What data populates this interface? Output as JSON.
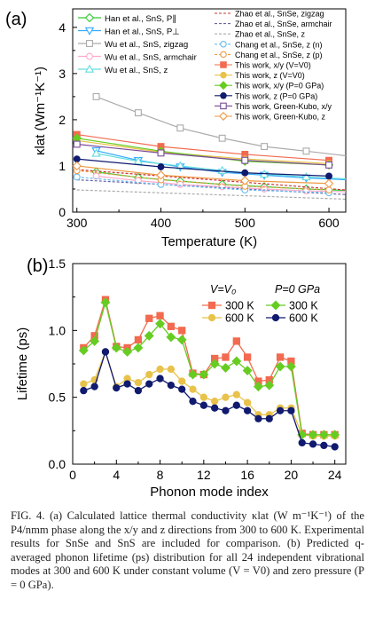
{
  "chart_data": [
    {
      "type": "line",
      "panel_label": "(a)",
      "xlabel": "Temperature (K)",
      "ylabel": "κlat (Wm⁻¹K⁻¹)",
      "xlim": [
        295,
        620
      ],
      "ylim": [
        0,
        4.4
      ],
      "xticks": [
        300,
        400,
        500,
        600
      ],
      "yticks": [
        0,
        1,
        2,
        3,
        4
      ],
      "grid": false,
      "legend_left": [
        {
          "label": "Han et al., SnS, P∥",
          "color": "#33cc33",
          "marker": "diamond-open"
        },
        {
          "label": "Han et al., SnS, P⊥",
          "color": "#33aaff",
          "marker": "triangle-down-open"
        },
        {
          "label": "Wu et al., SnS, zigzag",
          "color": "#aaaaaa",
          "marker": "square-open"
        },
        {
          "label": "Wu et al., SnS, armchair",
          "color": "#ffaacc",
          "marker": "circle-open"
        },
        {
          "label": "Wu et al., SnS, z",
          "color": "#66dddd",
          "marker": "triangle-up-open"
        }
      ],
      "legend_right": [
        {
          "label": "Zhao et al., SnSe, zigzag",
          "color": "#cc3333",
          "marker": "dash"
        },
        {
          "label": "Zhao et al., SnSe, armchair",
          "color": "#6666aa",
          "marker": "dash"
        },
        {
          "label": "Zhao et al., SnSe, z",
          "color": "#aaaaaa",
          "marker": "dash"
        },
        {
          "label": "Chang et al., SnSe, z (n)",
          "color": "#66bbee",
          "marker": "circle-open-dash"
        },
        {
          "label": "Chang et al., SnSe, z (p)",
          "color": "#ee9944",
          "marker": "circle-open-dash"
        },
        {
          "label": "This work, x/y (V=V0)",
          "color": "#f26a4f",
          "marker": "square"
        },
        {
          "label": "This work, z (V=V0)",
          "color": "#e8c24a",
          "marker": "circle"
        },
        {
          "label": "This work, x/y (P=0 GPa)",
          "color": "#66cc22",
          "marker": "diamond"
        },
        {
          "label": "This work, z (P=0 GPa)",
          "color": "#101a6e",
          "marker": "circle"
        },
        {
          "label": "This work, Green-Kubo, x/y",
          "color": "#7a4a9a",
          "marker": "square-open"
        },
        {
          "label": "This work, Green-Kubo, z",
          "color": "#ee9944",
          "marker": "diamond-open"
        }
      ],
      "series": [
        {
          "name": "Wu et al., SnS, zigzag",
          "color": "#aaaaaa",
          "marker": "square-open",
          "style": "solid",
          "x": [
            323,
            373,
            423,
            473,
            523,
            573,
            623
          ],
          "y": [
            2.5,
            2.15,
            1.82,
            1.6,
            1.42,
            1.32,
            1.22
          ]
        },
        {
          "name": "Han et al., SnS, P⊥",
          "color": "#33aaff",
          "marker": "triangle-down-open",
          "style": "solid",
          "x": [
            323,
            373,
            423,
            473,
            523,
            573,
            623
          ],
          "y": [
            1.33,
            1.12,
            0.98,
            0.86,
            0.8,
            0.74,
            0.7
          ]
        },
        {
          "name": "Wu et al., SnS, z",
          "color": "#66dddd",
          "marker": "triangle-up-open",
          "style": "solid",
          "x": [
            323,
            373,
            423,
            473,
            523,
            573,
            623
          ],
          "y": [
            1.27,
            1.1,
            1.0,
            0.9,
            0.82,
            0.76,
            0.72
          ]
        },
        {
          "name": "Han et al., SnS, P∥",
          "color": "#33cc33",
          "marker": "diamond-open",
          "style": "solid",
          "x": [
            323,
            373,
            423,
            473,
            523,
            573,
            623
          ],
          "y": [
            0.87,
            0.75,
            0.67,
            0.6,
            0.55,
            0.5,
            0.47
          ]
        },
        {
          "name": "Wu et al., SnS, armchair",
          "color": "#ffaacc",
          "marker": "circle-open",
          "style": "solid",
          "x": [
            323,
            373,
            423,
            473,
            523,
            573,
            623
          ],
          "y": [
            0.78,
            0.68,
            0.6,
            0.55,
            0.5,
            0.46,
            0.44
          ]
        },
        {
          "name": "Zhao et al., SnSe, zigzag",
          "color": "#cc3333",
          "marker": "none",
          "style": "dash",
          "x": [
            300,
            620
          ],
          "y": [
            0.92,
            0.48
          ]
        },
        {
          "name": "Zhao et al., SnSe, armchair",
          "color": "#6666aa",
          "marker": "none",
          "style": "dash",
          "x": [
            300,
            620
          ],
          "y": [
            0.7,
            0.38
          ]
        },
        {
          "name": "Zhao et al., SnSe, z",
          "color": "#aaaaaa",
          "marker": "none",
          "style": "dash",
          "x": [
            300,
            620
          ],
          "y": [
            0.48,
            0.28
          ]
        },
        {
          "name": "Chang et al., SnSe, z (n)",
          "color": "#66bbee",
          "marker": "circle-open",
          "style": "dash",
          "x": [
            300,
            400,
            500,
            600
          ],
          "y": [
            0.76,
            0.6,
            0.48,
            0.42
          ]
        },
        {
          "name": "Chang et al., SnSe, z (p)",
          "color": "#ee9944",
          "marker": "circle-open",
          "style": "dash",
          "x": [
            300,
            400,
            500,
            600
          ],
          "y": [
            0.9,
            0.7,
            0.56,
            0.48
          ]
        },
        {
          "name": "This work, x/y (V=V0)",
          "color": "#f26a4f",
          "marker": "square",
          "style": "solid",
          "x": [
            300,
            400,
            500,
            600
          ],
          "y": [
            1.68,
            1.42,
            1.25,
            1.12
          ]
        },
        {
          "name": "This work, z (V=V0)",
          "color": "#e8c24a",
          "marker": "circle",
          "style": "solid",
          "x": [
            300,
            400,
            500,
            600
          ],
          "y": [
            1.55,
            1.3,
            1.15,
            1.05
          ]
        },
        {
          "name": "This work, x/y (P=0 GPa)",
          "color": "#66cc22",
          "marker": "diamond",
          "style": "solid",
          "x": [
            300,
            400,
            500,
            600
          ],
          "y": [
            1.6,
            1.32,
            1.1,
            1.02
          ]
        },
        {
          "name": "This work, z (P=0 GPa)",
          "color": "#101a6e",
          "marker": "circle",
          "style": "solid",
          "x": [
            300,
            400,
            500,
            600
          ],
          "y": [
            1.15,
            0.98,
            0.85,
            0.78
          ]
        },
        {
          "name": "This work, Green-Kubo, x/y",
          "color": "#7a4a9a",
          "marker": "square-open",
          "style": "solid",
          "x": [
            300,
            400,
            500,
            600
          ],
          "y": [
            1.47,
            1.28,
            1.12,
            1.02
          ]
        },
        {
          "name": "This work, Green-Kubo, z",
          "color": "#ee9944",
          "marker": "diamond-open",
          "style": "solid",
          "x": [
            300,
            400,
            500,
            600
          ],
          "y": [
            1.0,
            0.8,
            0.68,
            0.62
          ]
        }
      ]
    },
    {
      "type": "line",
      "panel_label": "(b)",
      "xlabel": "Phonon mode index",
      "ylabel": "Lifetime (ps)",
      "xlim": [
        0,
        25
      ],
      "ylim": [
        0,
        1.5
      ],
      "xticks": [
        0,
        4,
        8,
        12,
        16,
        20,
        24
      ],
      "yticks": [
        0.0,
        0.5,
        1.0,
        1.5
      ],
      "grid": false,
      "legend_group_titles": [
        "V=V₀",
        "P=0 GPa"
      ],
      "legend_entries": [
        {
          "label": "300 K",
          "series": "V=V0, 300 K",
          "group": "V=V₀"
        },
        {
          "label": "600 K",
          "series": "V=V0, 600 K",
          "group": "V=V₀"
        },
        {
          "label": "300 K",
          "series": "P=0 GPa, 300 K",
          "group": "P=0 GPa"
        },
        {
          "label": "600 K",
          "series": "P=0 GPa, 600 K",
          "group": "P=0 GPa"
        }
      ],
      "x": [
        1,
        2,
        3,
        4,
        5,
        6,
        7,
        8,
        9,
        10,
        11,
        12,
        13,
        14,
        15,
        16,
        17,
        18,
        19,
        20,
        21,
        22,
        23,
        24
      ],
      "series": [
        {
          "name": "V=V0, 300 K",
          "color": "#f26a4f",
          "marker": "square",
          "values": [
            0.87,
            0.96,
            1.23,
            0.88,
            0.87,
            0.93,
            1.09,
            1.11,
            1.03,
            1.0,
            0.68,
            0.67,
            0.79,
            0.8,
            0.92,
            0.8,
            0.62,
            0.63,
            0.8,
            0.77,
            0.23,
            0.22,
            0.22,
            0.22
          ]
        },
        {
          "name": "V=V0, 600 K",
          "color": "#e8c24a",
          "marker": "circle",
          "values": [
            0.6,
            0.63,
            0.84,
            0.58,
            0.64,
            0.61,
            0.67,
            0.71,
            0.71,
            0.62,
            0.56,
            0.5,
            0.47,
            0.5,
            0.52,
            0.46,
            0.37,
            0.37,
            0.42,
            0.42,
            0.22,
            0.21,
            0.21,
            0.21
          ]
        },
        {
          "name": "P=0 GPa, 300 K",
          "color": "#66cc22",
          "marker": "diamond",
          "values": [
            0.85,
            0.92,
            1.21,
            0.87,
            0.84,
            0.87,
            0.96,
            1.05,
            0.95,
            0.93,
            0.67,
            0.67,
            0.75,
            0.72,
            0.77,
            0.7,
            0.58,
            0.59,
            0.73,
            0.73,
            0.22,
            0.22,
            0.22,
            0.22
          ]
        },
        {
          "name": "P=0 GPa, 600 K",
          "color": "#101a6e",
          "marker": "circle",
          "values": [
            0.55,
            0.58,
            0.84,
            0.57,
            0.6,
            0.55,
            0.6,
            0.64,
            0.59,
            0.56,
            0.47,
            0.44,
            0.42,
            0.4,
            0.44,
            0.4,
            0.34,
            0.34,
            0.4,
            0.4,
            0.16,
            0.15,
            0.14,
            0.13
          ]
        }
      ]
    }
  ],
  "caption": {
    "label": "FIG. 4.",
    "text": "(a) Calculated lattice thermal conductivity κlat (W m⁻¹K⁻¹) of the P4/nmm phase along the x/y and z directions from 300 to 600 K. Experimental results for SnSe and SnS are included for comparison. (b) Predicted q-averaged phonon lifetime (ps) distribution for all 24 independent vibrational modes at 300 and 600 K under constant volume (V = V0) and zero pressure (P = 0 GPa)."
  }
}
